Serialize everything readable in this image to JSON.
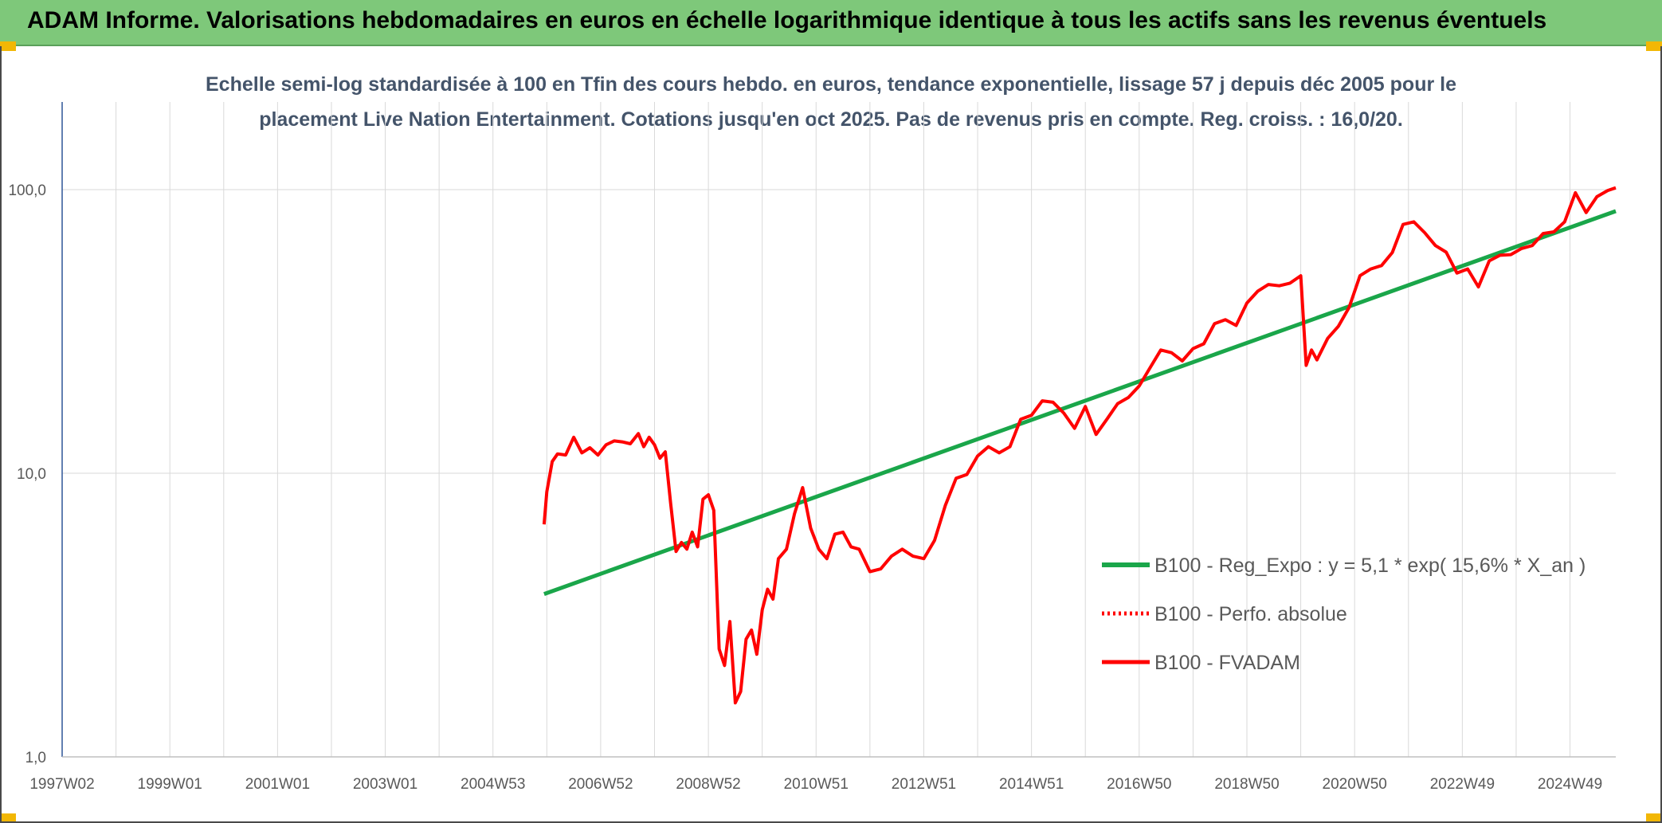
{
  "header": {
    "title": "ADAM Informe. Valorisations hebdomadaires en euros en échelle logarithmique identique à tous les actifs sans les revenus éventuels"
  },
  "colors": {
    "banner": "#7ec87a",
    "regression": "#1aa64a",
    "fvadam": "#ff0000",
    "perfo": "#ff0000",
    "grid": "#d9d9d9"
  },
  "chart_data": {
    "type": "line",
    "scale": "log",
    "subtitle_lines": [
      "Echelle semi-log standardisée à 100 en Tfin des cours hebdo. en euros, tendance exponentielle, lissage 57 j depuis déc 2005 pour le",
      "placement Live Nation Entertainment. Cotations jusqu'en oct 2025. Pas de revenus pris en compte. Reg. croiss. : 16,0/20."
    ],
    "x_range": [
      1997.0,
      2025.85
    ],
    "ylim": [
      1,
      200
    ],
    "y_ticks": [
      {
        "value": 100,
        "label": "100,0"
      },
      {
        "value": 10,
        "label": "10,0"
      },
      {
        "value": 1,
        "label": "1,0"
      }
    ],
    "x_ticks": [
      {
        "value": 1997.0,
        "label": "1997W02"
      },
      {
        "value": 1999.0,
        "label": "1999W01"
      },
      {
        "value": 2001.0,
        "label": "2001W01"
      },
      {
        "value": 2003.0,
        "label": "2003W01"
      },
      {
        "value": 2005.0,
        "label": "2004W53"
      },
      {
        "value": 2007.0,
        "label": "2006W52"
      },
      {
        "value": 2009.0,
        "label": "2008W52"
      },
      {
        "value": 2011.0,
        "label": "2010W51"
      },
      {
        "value": 2013.0,
        "label": "2012W51"
      },
      {
        "value": 2015.0,
        "label": "2014W51"
      },
      {
        "value": 2017.0,
        "label": "2016W50"
      },
      {
        "value": 2019.0,
        "label": "2018W50"
      },
      {
        "value": 2021.0,
        "label": "2020W50"
      },
      {
        "value": 2023.0,
        "label": "2022W49"
      },
      {
        "value": 2025.0,
        "label": "2024W49"
      }
    ],
    "series": [
      {
        "name": "B100 - Reg_Expo : y = 5,1 * exp( 15,6% *  X_an )",
        "style": "solid-green",
        "x": [
          2005.95,
          2025.85
        ],
        "y": [
          3.75,
          84
        ]
      },
      {
        "name": "B100 - Perfo. absolue",
        "style": "dotted-red",
        "x": [],
        "y": []
      },
      {
        "name": "B100 - FVADAM",
        "style": "solid-red",
        "x": [
          2005.95,
          2006.0,
          2006.1,
          2006.2,
          2006.35,
          2006.5,
          2006.65,
          2006.8,
          2006.95,
          2007.1,
          2007.25,
          2007.4,
          2007.55,
          2007.7,
          2007.8,
          2007.9,
          2008.0,
          2008.1,
          2008.2,
          2008.3,
          2008.4,
          2008.5,
          2008.6,
          2008.7,
          2008.8,
          2008.9,
          2009.0,
          2009.1,
          2009.2,
          2009.3,
          2009.4,
          2009.5,
          2009.6,
          2009.7,
          2009.8,
          2009.9,
          2010.0,
          2010.1,
          2010.2,
          2010.3,
          2010.45,
          2010.6,
          2010.75,
          2010.9,
          2011.05,
          2011.2,
          2011.35,
          2011.5,
          2011.65,
          2011.8,
          2012.0,
          2012.2,
          2012.4,
          2012.6,
          2012.8,
          2013.0,
          2013.2,
          2013.4,
          2013.6,
          2013.8,
          2014.0,
          2014.2,
          2014.4,
          2014.6,
          2014.8,
          2015.0,
          2015.2,
          2015.4,
          2015.6,
          2015.8,
          2016.0,
          2016.2,
          2016.4,
          2016.6,
          2016.8,
          2017.0,
          2017.2,
          2017.4,
          2017.6,
          2017.8,
          2018.0,
          2018.2,
          2018.4,
          2018.6,
          2018.8,
          2019.0,
          2019.2,
          2019.4,
          2019.6,
          2019.8,
          2020.0,
          2020.1,
          2020.2,
          2020.3,
          2020.5,
          2020.7,
          2020.9,
          2021.1,
          2021.3,
          2021.5,
          2021.7,
          2021.9,
          2022.1,
          2022.3,
          2022.5,
          2022.7,
          2022.9,
          2023.1,
          2023.3,
          2023.5,
          2023.7,
          2023.9,
          2024.1,
          2024.3,
          2024.5,
          2024.7,
          2024.9,
          2025.1,
          2025.3,
          2025.5,
          2025.7,
          2025.85
        ],
        "y": [
          6.6,
          8.6,
          11.0,
          11.7,
          11.6,
          13.4,
          11.8,
          12.3,
          11.6,
          12.6,
          13.0,
          12.9,
          12.7,
          13.8,
          12.4,
          13.4,
          12.6,
          11.3,
          11.9,
          7.8,
          5.3,
          5.7,
          5.4,
          6.2,
          5.5,
          8.1,
          8.4,
          7.4,
          2.4,
          2.1,
          3.0,
          1.55,
          1.7,
          2.6,
          2.8,
          2.3,
          3.3,
          3.9,
          3.6,
          5.0,
          5.4,
          7.2,
          8.9,
          6.4,
          5.4,
          5.0,
          6.1,
          6.2,
          5.5,
          5.4,
          4.5,
          4.6,
          5.1,
          5.4,
          5.1,
          5.0,
          5.8,
          7.7,
          9.6,
          9.9,
          11.5,
          12.4,
          11.8,
          12.4,
          15.5,
          16.0,
          18.0,
          17.8,
          16.3,
          14.4,
          17.2,
          13.7,
          15.5,
          17.6,
          18.5,
          20.3,
          23.5,
          27.2,
          26.6,
          24.9,
          27.5,
          28.6,
          33.7,
          34.8,
          33.2,
          39.8,
          43.8,
          46.3,
          45.8,
          46.8,
          49.7,
          24.0,
          27.2,
          25.1,
          29.9,
          33.0,
          38.5,
          49.7,
          52.5,
          54.0,
          60.0,
          75.4,
          77.0,
          70.5,
          63.5,
          60.2,
          50.8,
          52.5,
          45.4,
          56.1,
          58.7,
          59.0,
          62.0,
          63.5,
          70.0,
          71.0,
          77.0,
          97.5,
          83.0,
          94.4,
          99.3,
          101.5
        ]
      }
    ]
  }
}
